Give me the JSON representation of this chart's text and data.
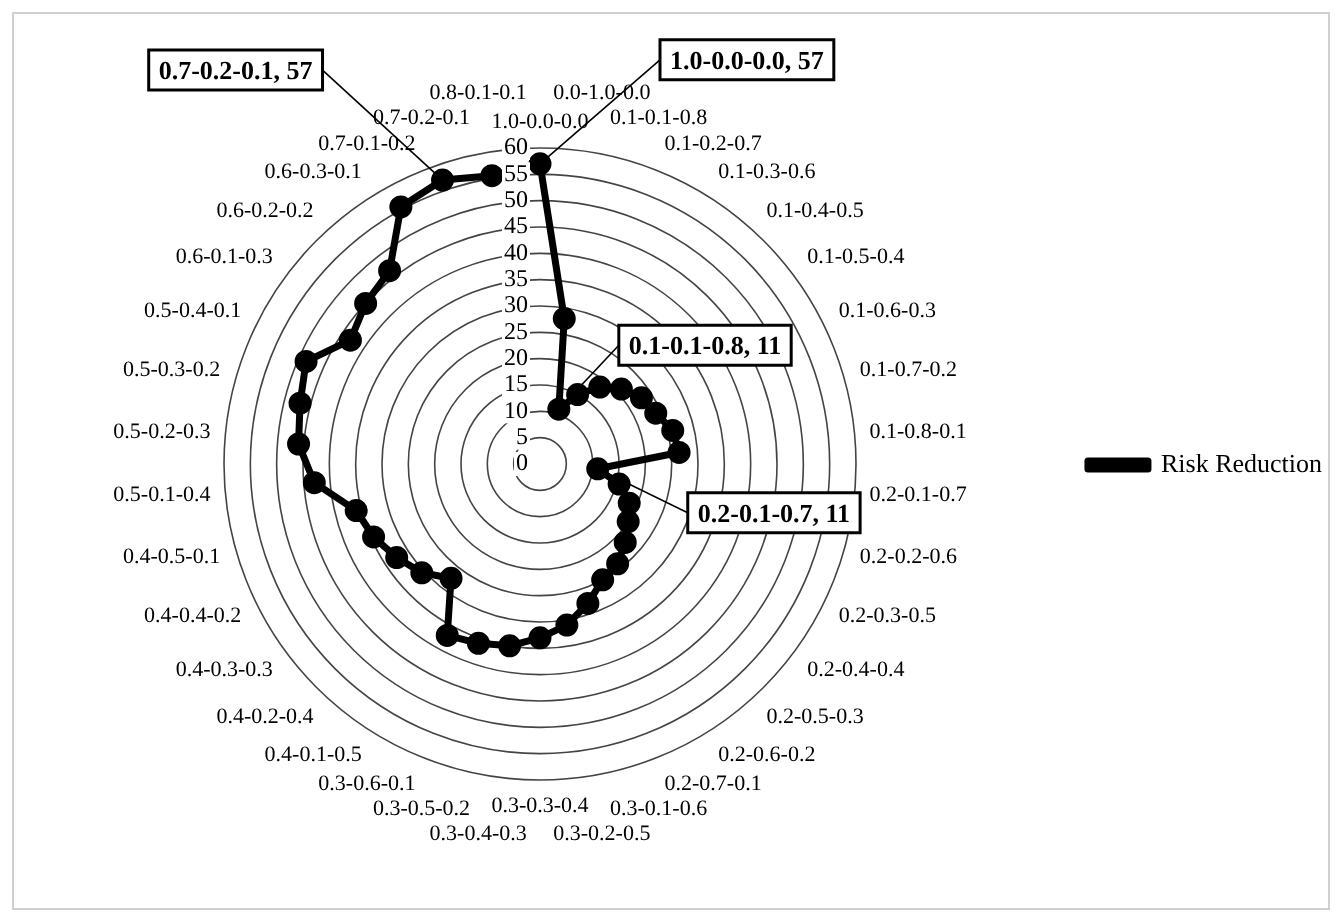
{
  "chart_data": {
    "type": "radar",
    "categories": [
      "1.0-0.0-0.0",
      "0.0-1.0-0.0",
      "0.1-0.1-0.8",
      "0.1-0.2-0.7",
      "0.1-0.3-0.6",
      "0.1-0.4-0.5",
      "0.1-0.5-0.4",
      "0.1-0.6-0.3",
      "0.1-0.7-0.2",
      "0.1-0.8-0.1",
      "0.2-0.1-0.7",
      "0.2-0.2-0.6",
      "0.2-0.3-0.5",
      "0.2-0.4-0.4",
      "0.2-0.5-0.3",
      "0.2-0.6-0.2",
      "0.2-0.7-0.1",
      "0.3-0.1-0.6",
      "0.3-0.2-0.5",
      "0.3-0.3-0.4",
      "0.3-0.4-0.3",
      "0.3-0.5-0.2",
      "0.3-0.6-0.1",
      "0.4-0.1-0.5",
      "0.4-0.2-0.4",
      "0.4-0.3-0.3",
      "0.4-0.4-0.2",
      "0.4-0.5-0.1",
      "0.5-0.1-0.4",
      "0.5-0.2-0.3",
      "0.5-0.3-0.2",
      "0.5-0.4-0.1",
      "0.6-0.1-0.3",
      "0.6-0.2-0.2",
      "0.6-0.3-0.1",
      "0.7-0.1-0.2",
      "0.7-0.2-0.1",
      "0.8-0.1-0.1"
    ],
    "series": [
      {
        "name": "Risk Reduction",
        "color": "#000000",
        "values": [
          57,
          28,
          11,
          15,
          18.5,
          21,
          23,
          24,
          26,
          26.5,
          11,
          15.5,
          18.5,
          20,
          22,
          24,
          25,
          28,
          31,
          33,
          35,
          36,
          37,
          27.5,
          30.5,
          32.5,
          34.5,
          36,
          43,
          46,
          47,
          48.5,
          43,
          45,
          46.5,
          55.5,
          57,
          55.5
        ]
      }
    ],
    "ylim": [
      0,
      60
    ],
    "yticks": [
      0,
      5,
      10,
      15,
      20,
      25,
      30,
      35,
      40,
      45,
      50,
      55,
      60
    ],
    "grid": true,
    "legend": "right",
    "marker": "circle",
    "line_style": "solid",
    "annotations": [
      {
        "text": "1.0-0.0-0.0, 57",
        "x": "1.0-0.0-0.0"
      },
      {
        "text": "0.7-0.2-0.1, 57",
        "x": "0.7-0.2-0.1"
      },
      {
        "text": "0.1-0.1-0.8, 11",
        "x": "0.1-0.1-0.8"
      },
      {
        "text": "0.2-0.1-0.7, 11",
        "x": "0.2-0.1-0.7"
      }
    ]
  }
}
